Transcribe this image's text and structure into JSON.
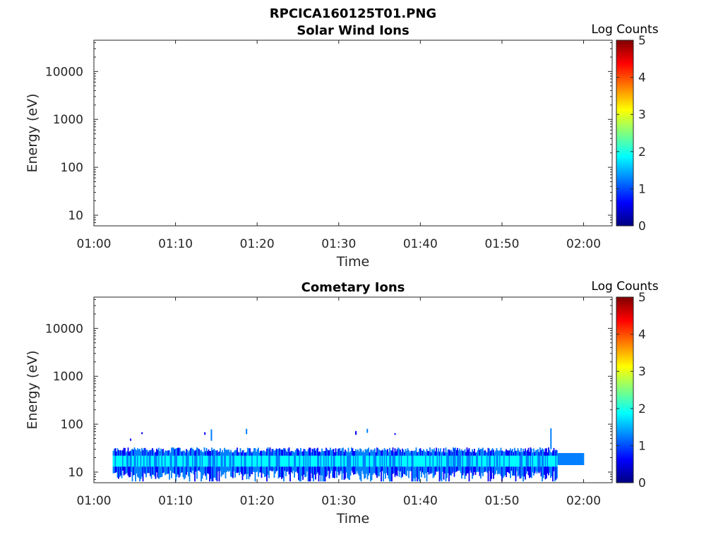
{
  "figure": {
    "title": "RPCICA160125T01.PNG"
  },
  "colormap": [
    "#00007f",
    "#0000ff",
    "#007fff",
    "#00ffff",
    "#7fff7f",
    "#ffff00",
    "#ff7f00",
    "#ff0000",
    "#7f0000"
  ],
  "chart_data": [
    {
      "type": "heatmap",
      "title": "Solar Wind Ions",
      "xlabel": "Time",
      "ylabel": "Energy (eV)",
      "x_ticks": [
        "01:00",
        "01:10",
        "01:20",
        "01:30",
        "01:40",
        "01:50",
        "02:00"
      ],
      "x_range_min": [
        0,
        63.5
      ],
      "y_scale": "log",
      "y_ticks": [
        10,
        100,
        1000,
        10000
      ],
      "y_tick_labels": [
        "10",
        "100",
        "1000",
        "10000"
      ],
      "y_range_ev": [
        6,
        45000
      ],
      "colorbar": {
        "label": "Log Counts",
        "range": [
          0,
          5
        ],
        "ticks": [
          "0",
          "1",
          "2",
          "3",
          "4",
          "5"
        ]
      },
      "bands": [],
      "spikes": []
    },
    {
      "type": "heatmap",
      "title": "Cometary Ions",
      "xlabel": "Time",
      "ylabel": "Energy (eV)",
      "x_ticks": [
        "01:00",
        "01:10",
        "01:20",
        "01:30",
        "01:40",
        "01:50",
        "02:00"
      ],
      "x_range_min": [
        0,
        63.5
      ],
      "y_scale": "log",
      "y_ticks": [
        10,
        100,
        1000,
        10000
      ],
      "y_tick_labels": [
        "10",
        "100",
        "1000",
        "10000"
      ],
      "y_range_ev": [
        6,
        45000
      ],
      "colorbar": {
        "label": "Log Counts",
        "range": [
          0,
          5
        ],
        "ticks": [
          "0",
          "1",
          "2",
          "3",
          "4",
          "5"
        ]
      },
      "bands": [
        {
          "t_start_min": 2.3,
          "t_end_min": 56.8,
          "e_low_ev": 8,
          "e_high_ev": 30,
          "level": 1.0
        },
        {
          "t_start_min": 2.3,
          "t_end_min": 56.8,
          "e_low_ev": 13,
          "e_high_ev": 22,
          "level": 1.5
        },
        {
          "t_start_min": 56.8,
          "t_end_min": 60.0,
          "e_low_ev": 14,
          "e_high_ev": 25,
          "level": 1.1
        }
      ],
      "spikes": [
        {
          "t_min": 4.5,
          "e_low_ev": 45,
          "e_high_ev": 50,
          "level": 0.6
        },
        {
          "t_min": 5.9,
          "e_low_ev": 62,
          "e_high_ev": 68,
          "level": 0.6
        },
        {
          "t_min": 13.6,
          "e_low_ev": 60,
          "e_high_ev": 68,
          "level": 0.8
        },
        {
          "t_min": 14.4,
          "e_low_ev": 45,
          "e_high_ev": 78,
          "level": 1.0
        },
        {
          "t_min": 18.7,
          "e_low_ev": 62,
          "e_high_ev": 80,
          "level": 1.0
        },
        {
          "t_min": 32.1,
          "e_low_ev": 60,
          "e_high_ev": 72,
          "level": 0.8
        },
        {
          "t_min": 33.5,
          "e_low_ev": 66,
          "e_high_ev": 80,
          "level": 1.0
        },
        {
          "t_min": 36.9,
          "e_low_ev": 60,
          "e_high_ev": 65,
          "level": 0.5
        },
        {
          "t_min": 56.0,
          "e_low_ev": 30,
          "e_high_ev": 82,
          "level": 1.2
        }
      ]
    }
  ]
}
